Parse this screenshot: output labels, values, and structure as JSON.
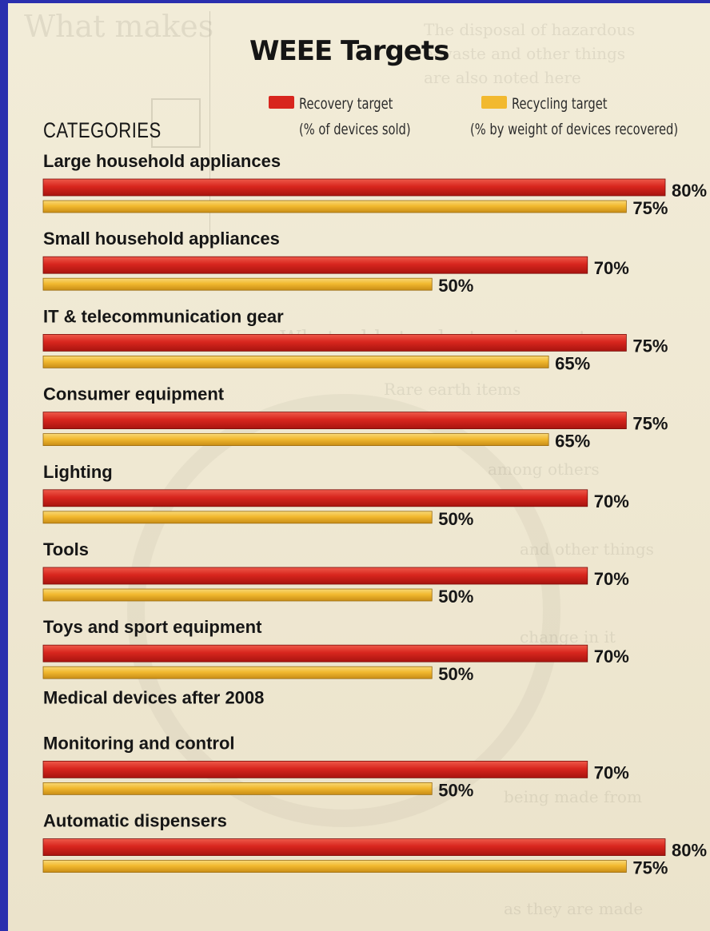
{
  "chart_data": {
    "type": "bar",
    "orientation": "horizontal",
    "title": "WEEE Targets",
    "category_heading": "CATEGORIES",
    "legend": [
      {
        "label": "Recovery target",
        "sublabel": "(% of devices sold)",
        "color": "#d8261e"
      },
      {
        "label": "Recycling target",
        "sublabel": "(% by weight of devices recovered)",
        "color": "#f2b92f"
      }
    ],
    "categories": [
      "Large household appliances",
      "Small household appliances",
      "IT & telecommunication gear",
      "Consumer equipment",
      "Lighting",
      "Tools",
      "Toys and sport equipment",
      "Monitoring and control",
      "Automatic dispensers"
    ],
    "group_heading": {
      "text": "Medical devices after 2008",
      "before_category": 7
    },
    "series": [
      {
        "name": "Recovery target",
        "color": "#d8261e",
        "values": [
          80,
          70,
          75,
          75,
          70,
          70,
          70,
          70,
          80
        ]
      },
      {
        "name": "Recycling target",
        "color": "#f2b92f",
        "values": [
          75,
          50,
          65,
          65,
          50,
          50,
          50,
          50,
          75
        ]
      }
    ],
    "value_suffix": "%",
    "xlim": [
      0,
      80
    ],
    "grid": false
  }
}
